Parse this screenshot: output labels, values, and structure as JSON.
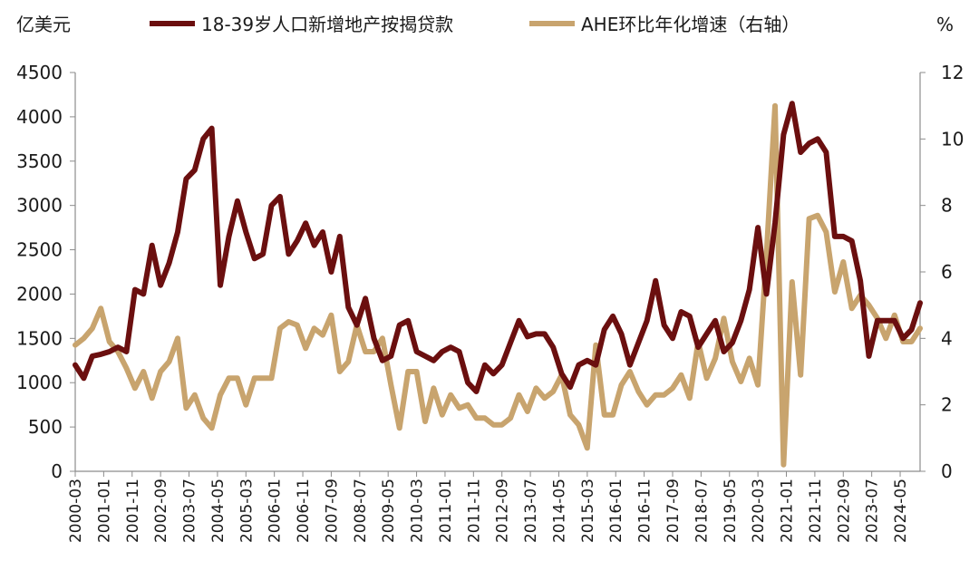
{
  "chart_data": {
    "type": "line",
    "left_unit": "亿美元",
    "right_unit": "%",
    "y_left": {
      "min": 0,
      "max": 4500,
      "ticks": [
        0,
        500,
        1000,
        1500,
        2000,
        2500,
        3000,
        3500,
        4000,
        4500
      ]
    },
    "y_right": {
      "min": 0,
      "max": 12,
      "ticks": [
        0,
        2,
        4,
        6,
        8,
        10,
        12
      ]
    },
    "x_range": [
      "2000-03",
      "2024-12"
    ],
    "x_tick_labels": [
      "2000-03",
      "2001-01",
      "2001-11",
      "2002-09",
      "2003-07",
      "2004-05",
      "2005-03",
      "2006-01",
      "2006-11",
      "2007-09",
      "2008-07",
      "2009-05",
      "2010-03",
      "2011-01",
      "2011-11",
      "2012-09",
      "2013-07",
      "2014-05",
      "2015-03",
      "2016-01",
      "2016-11",
      "2017-09",
      "2018-07",
      "2019-05",
      "2020-03",
      "2021-01",
      "2021-11",
      "2022-09",
      "2023-07",
      "2024-05"
    ],
    "legend_position": "top",
    "grid": false,
    "series": [
      {
        "name": "18-39岁人口新增地产按揭贷款",
        "axis": "left",
        "color": "#6b0f0f",
        "points": [
          [
            "2000-03",
            1200
          ],
          [
            "2000-06",
            1050
          ],
          [
            "2000-09",
            1300
          ],
          [
            "2000-12",
            1320
          ],
          [
            "2001-03",
            1350
          ],
          [
            "2001-06",
            1400
          ],
          [
            "2001-09",
            1350
          ],
          [
            "2001-12",
            2050
          ],
          [
            "2002-03",
            2000
          ],
          [
            "2002-06",
            2550
          ],
          [
            "2002-09",
            2100
          ],
          [
            "2002-12",
            2350
          ],
          [
            "2003-03",
            2700
          ],
          [
            "2003-06",
            3300
          ],
          [
            "2003-09",
            3400
          ],
          [
            "2003-12",
            3750
          ],
          [
            "2004-03",
            3870
          ],
          [
            "2004-06",
            2100
          ],
          [
            "2004-09",
            2650
          ],
          [
            "2004-12",
            3050
          ],
          [
            "2005-03",
            2700
          ],
          [
            "2005-06",
            2400
          ],
          [
            "2005-09",
            2450
          ],
          [
            "2005-12",
            3000
          ],
          [
            "2006-03",
            3100
          ],
          [
            "2006-06",
            2450
          ],
          [
            "2006-09",
            2600
          ],
          [
            "2006-12",
            2800
          ],
          [
            "2007-03",
            2550
          ],
          [
            "2007-06",
            2700
          ],
          [
            "2007-09",
            2250
          ],
          [
            "2007-12",
            2650
          ],
          [
            "2008-03",
            1850
          ],
          [
            "2008-06",
            1650
          ],
          [
            "2008-09",
            1950
          ],
          [
            "2008-12",
            1500
          ],
          [
            "2009-03",
            1250
          ],
          [
            "2009-06",
            1300
          ],
          [
            "2009-09",
            1650
          ],
          [
            "2009-12",
            1700
          ],
          [
            "2010-03",
            1350
          ],
          [
            "2010-06",
            1300
          ],
          [
            "2010-09",
            1250
          ],
          [
            "2010-12",
            1350
          ],
          [
            "2011-03",
            1400
          ],
          [
            "2011-06",
            1350
          ],
          [
            "2011-09",
            1000
          ],
          [
            "2011-12",
            900
          ],
          [
            "2012-03",
            1200
          ],
          [
            "2012-06",
            1100
          ],
          [
            "2012-09",
            1200
          ],
          [
            "2012-12",
            1450
          ],
          [
            "2013-03",
            1700
          ],
          [
            "2013-06",
            1520
          ],
          [
            "2013-09",
            1550
          ],
          [
            "2013-12",
            1550
          ],
          [
            "2014-03",
            1400
          ],
          [
            "2014-06",
            1100
          ],
          [
            "2014-09",
            950
          ],
          [
            "2014-12",
            1200
          ],
          [
            "2015-03",
            1250
          ],
          [
            "2015-06",
            1200
          ],
          [
            "2015-09",
            1600
          ],
          [
            "2015-12",
            1750
          ],
          [
            "2016-03",
            1550
          ],
          [
            "2016-06",
            1200
          ],
          [
            "2016-09",
            1450
          ],
          [
            "2016-12",
            1700
          ],
          [
            "2017-03",
            2150
          ],
          [
            "2017-06",
            1650
          ],
          [
            "2017-09",
            1500
          ],
          [
            "2017-12",
            1800
          ],
          [
            "2018-03",
            1750
          ],
          [
            "2018-06",
            1400
          ],
          [
            "2018-09",
            1550
          ],
          [
            "2018-12",
            1700
          ],
          [
            "2019-03",
            1350
          ],
          [
            "2019-06",
            1450
          ],
          [
            "2019-09",
            1700
          ],
          [
            "2019-12",
            2050
          ],
          [
            "2020-03",
            2750
          ],
          [
            "2020-06",
            2000
          ],
          [
            "2020-09",
            2800
          ],
          [
            "2020-12",
            3800
          ],
          [
            "2021-03",
            4150
          ],
          [
            "2021-06",
            3600
          ],
          [
            "2021-09",
            3700
          ],
          [
            "2021-12",
            3750
          ],
          [
            "2022-03",
            3600
          ],
          [
            "2022-06",
            2650
          ],
          [
            "2022-09",
            2650
          ],
          [
            "2022-12",
            2600
          ],
          [
            "2023-03",
            2150
          ],
          [
            "2023-06",
            1300
          ],
          [
            "2023-09",
            1700
          ],
          [
            "2023-12",
            1700
          ],
          [
            "2024-03",
            1700
          ],
          [
            "2024-06",
            1500
          ],
          [
            "2024-09",
            1600
          ],
          [
            "2024-12",
            1900
          ]
        ]
      },
      {
        "name": "AHE环比年化增速（右轴）",
        "axis": "right",
        "color": "#c8a46e",
        "points": [
          [
            "2000-03",
            3.8
          ],
          [
            "2000-06",
            4.0
          ],
          [
            "2000-09",
            4.3
          ],
          [
            "2000-12",
            4.9
          ],
          [
            "2001-03",
            3.9
          ],
          [
            "2001-06",
            3.6
          ],
          [
            "2001-09",
            3.1
          ],
          [
            "2001-12",
            2.5
          ],
          [
            "2002-03",
            3.0
          ],
          [
            "2002-06",
            2.2
          ],
          [
            "2002-09",
            3.0
          ],
          [
            "2002-12",
            3.3
          ],
          [
            "2003-03",
            4.0
          ],
          [
            "2003-06",
            1.9
          ],
          [
            "2003-09",
            2.3
          ],
          [
            "2003-12",
            1.6
          ],
          [
            "2004-03",
            1.3
          ],
          [
            "2004-06",
            2.3
          ],
          [
            "2004-09",
            2.8
          ],
          [
            "2004-12",
            2.8
          ],
          [
            "2005-03",
            2.0
          ],
          [
            "2005-06",
            2.8
          ],
          [
            "2005-09",
            2.8
          ],
          [
            "2005-12",
            2.8
          ],
          [
            "2006-03",
            4.3
          ],
          [
            "2006-06",
            4.5
          ],
          [
            "2006-09",
            4.4
          ],
          [
            "2006-12",
            3.7
          ],
          [
            "2007-03",
            4.3
          ],
          [
            "2007-06",
            4.1
          ],
          [
            "2007-09",
            4.7
          ],
          [
            "2007-12",
            3.0
          ],
          [
            "2008-03",
            3.3
          ],
          [
            "2008-06",
            4.4
          ],
          [
            "2008-09",
            3.6
          ],
          [
            "2008-12",
            3.6
          ],
          [
            "2009-03",
            4.0
          ],
          [
            "2009-06",
            2.6
          ],
          [
            "2009-09",
            1.3
          ],
          [
            "2009-12",
            3.0
          ],
          [
            "2010-03",
            3.0
          ],
          [
            "2010-06",
            1.5
          ],
          [
            "2010-09",
            2.5
          ],
          [
            "2010-12",
            1.7
          ],
          [
            "2011-03",
            2.3
          ],
          [
            "2011-06",
            1.9
          ],
          [
            "2011-09",
            2.0
          ],
          [
            "2011-12",
            1.6
          ],
          [
            "2012-03",
            1.6
          ],
          [
            "2012-06",
            1.4
          ],
          [
            "2012-09",
            1.4
          ],
          [
            "2012-12",
            1.6
          ],
          [
            "2013-03",
            2.3
          ],
          [
            "2013-06",
            1.8
          ],
          [
            "2013-09",
            2.5
          ],
          [
            "2013-12",
            2.2
          ],
          [
            "2014-03",
            2.4
          ],
          [
            "2014-06",
            2.9
          ],
          [
            "2014-09",
            1.7
          ],
          [
            "2014-12",
            1.4
          ],
          [
            "2015-03",
            0.7
          ],
          [
            "2015-06",
            3.8
          ],
          [
            "2015-09",
            1.7
          ],
          [
            "2015-12",
            1.7
          ],
          [
            "2016-03",
            2.6
          ],
          [
            "2016-06",
            3.0
          ],
          [
            "2016-09",
            2.4
          ],
          [
            "2016-12",
            2.0
          ],
          [
            "2017-03",
            2.3
          ],
          [
            "2017-06",
            2.3
          ],
          [
            "2017-09",
            2.5
          ],
          [
            "2017-12",
            2.9
          ],
          [
            "2018-03",
            2.2
          ],
          [
            "2018-06",
            3.9
          ],
          [
            "2018-09",
            2.8
          ],
          [
            "2018-12",
            3.4
          ],
          [
            "2019-03",
            4.6
          ],
          [
            "2019-06",
            3.3
          ],
          [
            "2019-09",
            2.7
          ],
          [
            "2019-12",
            3.4
          ],
          [
            "2020-03",
            2.6
          ],
          [
            "2020-06",
            6.5
          ],
          [
            "2020-09",
            11.0
          ],
          [
            "2020-12",
            0.2
          ],
          [
            "2021-03",
            5.7
          ],
          [
            "2021-06",
            2.9
          ],
          [
            "2021-09",
            7.6
          ],
          [
            "2021-12",
            7.7
          ],
          [
            "2022-03",
            7.2
          ],
          [
            "2022-06",
            5.4
          ],
          [
            "2022-09",
            6.3
          ],
          [
            "2022-12",
            4.9
          ],
          [
            "2023-03",
            5.3
          ],
          [
            "2023-06",
            5.0
          ],
          [
            "2023-09",
            4.6
          ],
          [
            "2023-12",
            4.0
          ],
          [
            "2024-03",
            4.7
          ],
          [
            "2024-06",
            3.9
          ],
          [
            "2024-09",
            3.9
          ],
          [
            "2024-12",
            4.3
          ]
        ]
      }
    ]
  }
}
